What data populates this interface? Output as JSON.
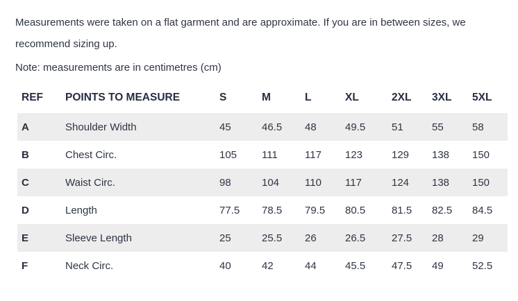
{
  "intro": {
    "paragraph": "Measurements were taken on a flat garment and are approximate. If you are in between sizes, we recommend sizing up.",
    "note": "Note: measurements are in centimetres (cm)"
  },
  "table": {
    "columns": [
      "REF",
      "POINTS TO MEASURE",
      "S",
      "M",
      "L",
      "XL",
      "2XL",
      "3XL",
      "5XL"
    ],
    "rows": [
      {
        "ref": "A",
        "label": "Shoulder Width",
        "values": [
          "45",
          "46.5",
          "48",
          "49.5",
          "51",
          "55",
          "58"
        ]
      },
      {
        "ref": "B",
        "label": "Chest Circ.",
        "values": [
          "105",
          "111",
          "117",
          "123",
          "129",
          "138",
          "150"
        ]
      },
      {
        "ref": "C",
        "label": "Waist Circ.",
        "values": [
          "98",
          "104",
          "110",
          "117",
          "124",
          "138",
          "150"
        ]
      },
      {
        "ref": "D",
        "label": "Length",
        "values": [
          "77.5",
          "78.5",
          "79.5",
          "80.5",
          "81.5",
          "82.5",
          "84.5"
        ]
      },
      {
        "ref": "E",
        "label": "Sleeve Length",
        "values": [
          "25",
          "25.5",
          "26",
          "26.5",
          "27.5",
          "28",
          "29"
        ]
      },
      {
        "ref": "F",
        "label": "Neck Circ.",
        "values": [
          "40",
          "42",
          "44",
          "45.5",
          "47.5",
          "49",
          "52.5"
        ]
      }
    ]
  },
  "colors": {
    "text": "#2e3445",
    "header_text": "#272d40",
    "row_stripe": "#ededed",
    "background": "#ffffff"
  }
}
